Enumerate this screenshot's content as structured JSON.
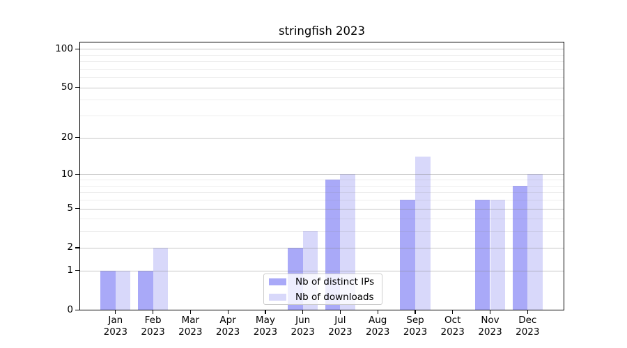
{
  "title": "stringfish 2023",
  "chart_data": {
    "type": "bar",
    "title": "stringfish 2023",
    "categories": [
      "Jan 2023",
      "Feb 2023",
      "Mar 2023",
      "Apr 2023",
      "May 2023",
      "Jun 2023",
      "Jul 2023",
      "Aug 2023",
      "Sep 2023",
      "Oct 2023",
      "Nov 2023",
      "Dec 2023"
    ],
    "category_line1": [
      "Jan",
      "Feb",
      "Mar",
      "Apr",
      "May",
      "Jun",
      "Jul",
      "Aug",
      "Sep",
      "Oct",
      "Nov",
      "Dec"
    ],
    "category_line2": "2023",
    "series": [
      {
        "name": "Nb of distinct IPs",
        "color": "#a9a9f8",
        "values": [
          1,
          1,
          0,
          0,
          0,
          2,
          9,
          0,
          6,
          0,
          6,
          8
        ]
      },
      {
        "name": "Nb of downloads",
        "color": "#d8d8fa",
        "values": [
          1,
          2,
          0,
          0,
          0,
          3,
          10,
          0,
          14,
          0,
          6,
          10
        ]
      }
    ],
    "xlabel": "",
    "ylabel": "",
    "yscale": "log10(1+y)",
    "y_ticks": [
      0,
      1,
      2,
      5,
      10,
      20,
      50,
      100
    ],
    "y_minor_gridlines": [
      3,
      4,
      6,
      7,
      8,
      9,
      30,
      40,
      60,
      70,
      80,
      90
    ],
    "ylim": [
      0,
      112
    ],
    "grid": true,
    "grid_major_color": "#c6c6c6",
    "grid_minor_color": "#ececec",
    "legend_position": "lower center",
    "background_color": "#ffffff",
    "spine_color": "#000000"
  }
}
